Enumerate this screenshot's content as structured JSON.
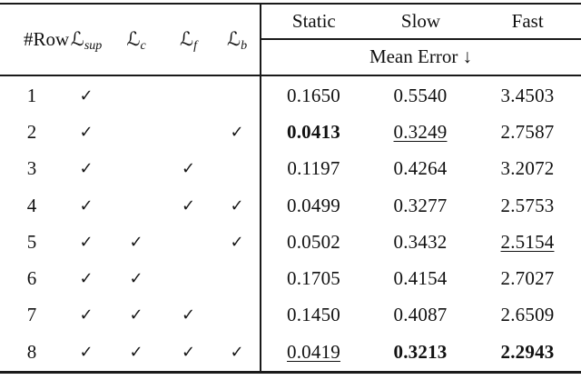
{
  "table": {
    "left_header": {
      "row_label": "#Row",
      "loss_columns": [
        {
          "symbol": "ℒ",
          "sub": "sup"
        },
        {
          "symbol": "ℒ",
          "sub": "c"
        },
        {
          "symbol": "ℒ",
          "sub": "f"
        },
        {
          "symbol": "ℒ",
          "sub": "b"
        }
      ]
    },
    "right_header": {
      "columns": [
        "Static",
        "Slow",
        "Fast"
      ],
      "subheader": "Mean Error ↓"
    },
    "rows": [
      {
        "num": "1",
        "checks": [
          "✓",
          "",
          "",
          ""
        ],
        "values": [
          {
            "text": "0.1650",
            "style": "normal"
          },
          {
            "text": "0.5540",
            "style": "normal"
          },
          {
            "text": "3.4503",
            "style": "normal"
          }
        ]
      },
      {
        "num": "2",
        "checks": [
          "✓",
          "",
          "",
          "✓"
        ],
        "values": [
          {
            "text": "0.0413",
            "style": "bold"
          },
          {
            "text": "0.3249",
            "style": "underline"
          },
          {
            "text": "2.7587",
            "style": "normal"
          }
        ]
      },
      {
        "num": "3",
        "checks": [
          "✓",
          "",
          "✓",
          ""
        ],
        "values": [
          {
            "text": "0.1197",
            "style": "normal"
          },
          {
            "text": "0.4264",
            "style": "normal"
          },
          {
            "text": "3.2072",
            "style": "normal"
          }
        ]
      },
      {
        "num": "4",
        "checks": [
          "✓",
          "",
          "✓",
          "✓"
        ],
        "values": [
          {
            "text": "0.0499",
            "style": "normal"
          },
          {
            "text": "0.3277",
            "style": "normal"
          },
          {
            "text": "2.5753",
            "style": "normal"
          }
        ]
      },
      {
        "num": "5",
        "checks": [
          "✓",
          "✓",
          "",
          "✓"
        ],
        "values": [
          {
            "text": "0.0502",
            "style": "normal"
          },
          {
            "text": "0.3432",
            "style": "normal"
          },
          {
            "text": "2.5154",
            "style": "underline"
          }
        ]
      },
      {
        "num": "6",
        "checks": [
          "✓",
          "✓",
          "",
          ""
        ],
        "values": [
          {
            "text": "0.1705",
            "style": "normal"
          },
          {
            "text": "0.4154",
            "style": "normal"
          },
          {
            "text": "2.7027",
            "style": "normal"
          }
        ]
      },
      {
        "num": "7",
        "checks": [
          "✓",
          "✓",
          "✓",
          ""
        ],
        "values": [
          {
            "text": "0.1450",
            "style": "normal"
          },
          {
            "text": "0.4087",
            "style": "normal"
          },
          {
            "text": "2.6509",
            "style": "normal"
          }
        ]
      },
      {
        "num": "8",
        "checks": [
          "✓",
          "✓",
          "✓",
          "✓"
        ],
        "values": [
          {
            "text": "0.0419",
            "style": "underline"
          },
          {
            "text": "0.3213",
            "style": "bold"
          },
          {
            "text": "2.2943",
            "style": "bold"
          }
        ]
      }
    ]
  }
}
